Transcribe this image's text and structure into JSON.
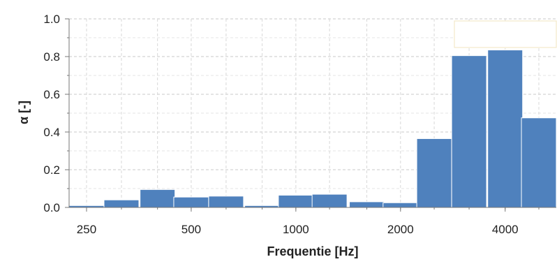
{
  "chart_data": {
    "type": "bar",
    "title": "",
    "xlabel": "Frequentie [Hz]",
    "ylabel": "α [-]",
    "x_scale": "log2",
    "x_ticks": [
      {
        "value": 250,
        "label": "250"
      },
      {
        "value": 500,
        "label": "500"
      },
      {
        "value": 1000,
        "label": "1000"
      },
      {
        "value": 2000,
        "label": "2000"
      },
      {
        "value": 4000,
        "label": "4000"
      }
    ],
    "y_ticks": [
      "0.0",
      "0.2",
      "0.4",
      "0.6",
      "0.8",
      "1.0"
    ],
    "xlim": [
      250,
      5000
    ],
    "ylim": [
      0,
      1
    ],
    "grid": true,
    "legend": "top-right, empty box",
    "bar_color": "#4f81bd",
    "bars": [
      {
        "x": 250,
        "value": 0.01
      },
      {
        "x": 315,
        "value": 0.04
      },
      {
        "x": 400,
        "value": 0.095
      },
      {
        "x": 500,
        "value": 0.055
      },
      {
        "x": 630,
        "value": 0.06
      },
      {
        "x": 800,
        "value": 0.01
      },
      {
        "x": 1000,
        "value": 0.065
      },
      {
        "x": 1250,
        "value": 0.07
      },
      {
        "x": 1600,
        "value": 0.03
      },
      {
        "x": 2000,
        "value": 0.025
      },
      {
        "x": 2500,
        "value": 0.365
      },
      {
        "x": 3150,
        "value": 0.805
      },
      {
        "x": 4000,
        "value": 0.835
      },
      {
        "x": 5000,
        "value": 0.475
      }
    ]
  }
}
